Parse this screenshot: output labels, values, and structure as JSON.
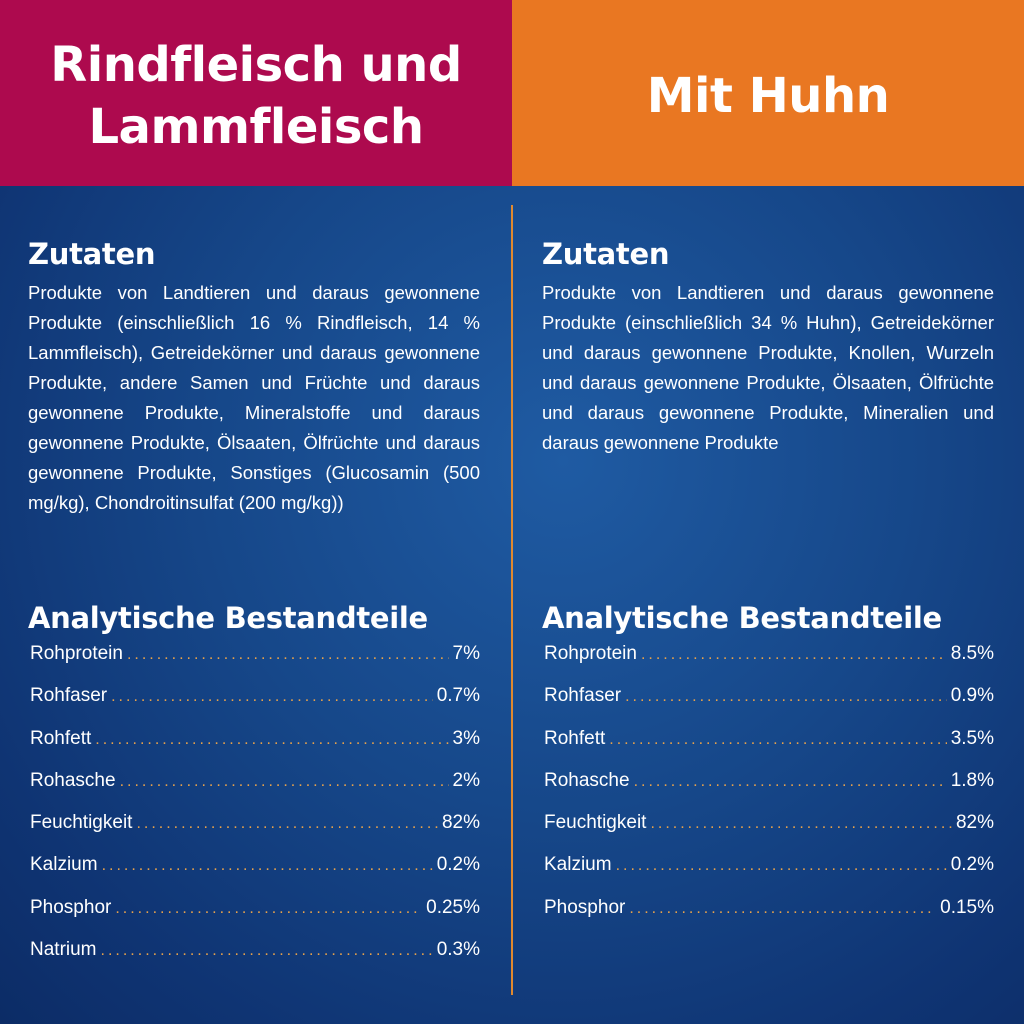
{
  "left": {
    "header_line1": "Rindfleisch und",
    "header_line2": "Lammfleisch",
    "ingredients_title": "Zutaten",
    "ingredients_text": "Produkte von Landtieren und daraus gewonnene Produkte (einschließlich 16 % Rindfleisch, 14 % Lammfleisch), Getreidekörner und daraus gewonnene Produkte, andere Samen und Früchte und daraus gewonnene Produkte, Mineralstoffe und daraus gewonnene Produkte, Ölsaaten, Ölfrüchte und daraus gewonnene Produkte, Sonstiges (Glucosamin (500 mg/kg), Chondroitinsulfat (200 mg/kg))",
    "analysis_title": "Analytische Bestandteile",
    "analysis": [
      {
        "label": "Rohprotein",
        "value": "7%"
      },
      {
        "label": "Rohfaser",
        "value": "0.7%"
      },
      {
        "label": "Rohfett",
        "value": "3%"
      },
      {
        "label": "Rohasche",
        "value": "2%"
      },
      {
        "label": "Feuchtigkeit",
        "value": "82%"
      },
      {
        "label": "Kalzium",
        "value": "0.2%"
      },
      {
        "label": "Phosphor",
        "value": "0.25%"
      },
      {
        "label": "Natrium",
        "value": "0.3%"
      }
    ]
  },
  "right": {
    "header": "Mit Huhn",
    "ingredients_title": "Zutaten",
    "ingredients_text": "Produkte von Landtieren und daraus gewonnene Produkte (einschließlich 34 % Huhn), Getreidekörner und daraus gewonnene Produkte, Knollen, Wurzeln und daraus gewonnene Produkte, Ölsaaten, Ölfrüchte und daraus gewonnene Produkte, Mineralien und daraus gewonnene Produkte",
    "analysis_title": "Analytische Bestandteile",
    "analysis": [
      {
        "label": "Rohprotein",
        "value": "8.5%"
      },
      {
        "label": "Rohfaser",
        "value": "0.9%"
      },
      {
        "label": "Rohfett",
        "value": "3.5%"
      },
      {
        "label": "Rohasche",
        "value": "1.8%"
      },
      {
        "label": "Feuchtigkeit",
        "value": "82%"
      },
      {
        "label": "Kalzium",
        "value": "0.2%"
      },
      {
        "label": "Phosphor",
        "value": "0.15%"
      }
    ]
  },
  "colors": {
    "left_header": "#ad0a4e",
    "right_header": "#e97722",
    "background": "#164789",
    "divider": "#e0892f",
    "dots": "#e8a24a"
  }
}
